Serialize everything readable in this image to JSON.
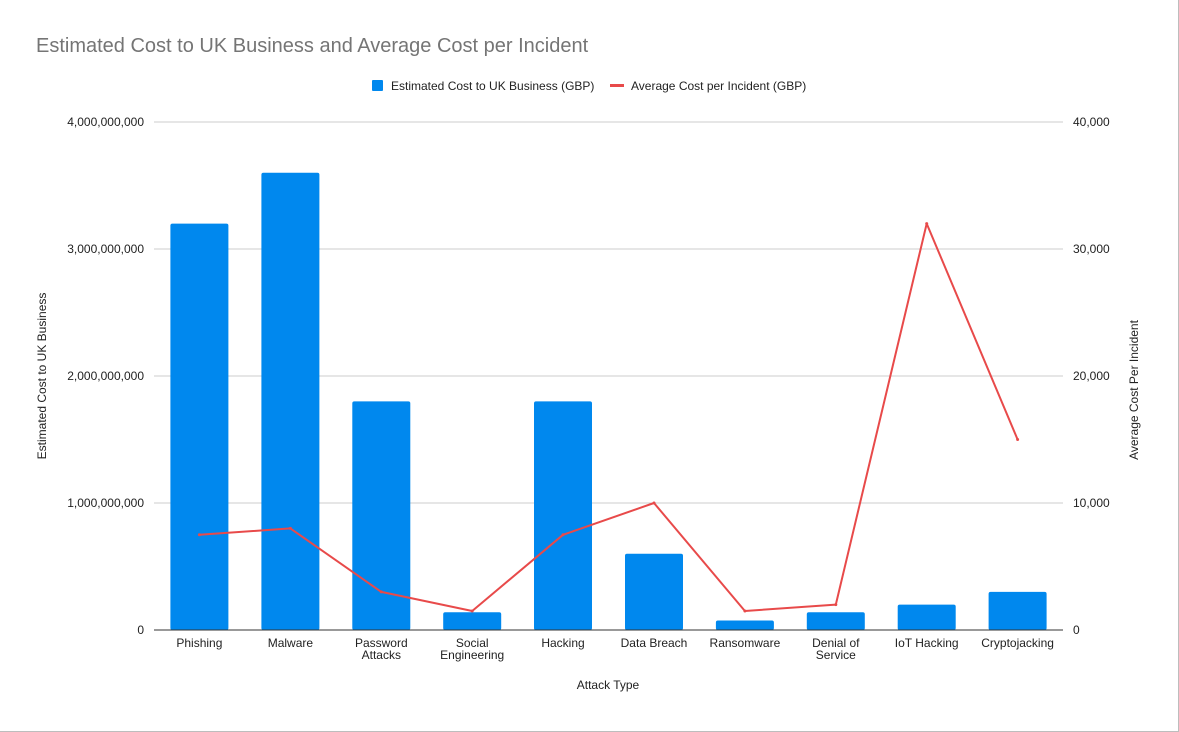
{
  "chart_data": {
    "type": "bar",
    "title": "Estimated Cost to UK Business and Average Cost per Incident",
    "xlabel": "Attack Type",
    "ylabel": "Estimated Cost to UK Business",
    "y2label": "Average Cost Per Incident",
    "ylim": [
      0,
      4000000000
    ],
    "y2lim": [
      0,
      40000
    ],
    "yticks": [
      "0",
      "1,000,000,000",
      "2,000,000,000",
      "3,000,000,000",
      "4,000,000,000"
    ],
    "y2ticks": [
      "0",
      "10,000",
      "20,000",
      "30,000",
      "40,000"
    ],
    "categories": [
      "Phishing",
      "Malware",
      "Password Attacks",
      "Social Engineering",
      "Hacking",
      "Data Breach",
      "Ransomware",
      "Denial of Service",
      "IoT Hacking",
      "Cryptojacking"
    ],
    "category_lines": [
      [
        "Phishing"
      ],
      [
        "Malware"
      ],
      [
        "Password",
        "Attacks"
      ],
      [
        "Social",
        "Engineering"
      ],
      [
        "Hacking"
      ],
      [
        "Data Breach"
      ],
      [
        "Ransomware"
      ],
      [
        "Denial of",
        "Service"
      ],
      [
        "IoT Hacking"
      ],
      [
        "Cryptojacking"
      ]
    ],
    "series": [
      {
        "name": "Estimated Cost to UK Business (GBP)",
        "type": "bar",
        "axis": "left",
        "color": "#0088ee",
        "values": [
          3200000000,
          3600000000,
          1800000000,
          140000000,
          1800000000,
          600000000,
          75000000,
          140000000,
          200000000,
          300000000
        ]
      },
      {
        "name": "Average Cost per Incident (GBP)",
        "type": "line",
        "axis": "right",
        "color": "#e84a4a",
        "values": [
          7500,
          8000,
          3000,
          1500,
          7500,
          10000,
          1500,
          2000,
          32000,
          15000
        ]
      }
    ],
    "grid": true,
    "legend_position": "top"
  }
}
